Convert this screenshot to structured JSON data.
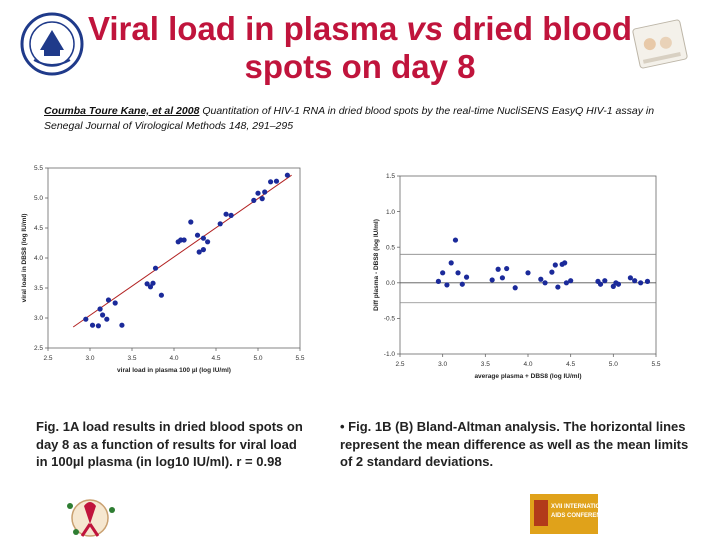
{
  "slide": {
    "title_part1": "Viral load in plasma ",
    "title_vs": "vs",
    "title_part2": " dried blood spots on day 8",
    "citation_authors": "Coumba Toure Kane, et al 2008",
    "citation_text": " Quantitation of HIV-1 RNA in dried blood spots by the real-time NucliSENS EasyQ HIV-1 assay in Senegal Journal of Virological Methods 148,  291–295",
    "caption_a": "Fig. 1A load results in dried blood spots on day 8 as a function of results for viral load in 100µl plasma (in log10 IU/ml). r = 0.98",
    "caption_b": "• Fig. 1B (B) Bland-Altman analysis. The horizontal lines represent the mean difference as well as the mean limits of 2 standard deviations.",
    "conference_text": "XVII INTERNATIONAL AIDS CONFERENCE",
    "colors": {
      "title": "#c0143c",
      "points": "#1b2a9a",
      "regression_line": "#b22222",
      "logo": "#1f3a8a",
      "conference_logo": "#e0a21a"
    }
  },
  "chart_data": [
    {
      "type": "scatter",
      "xlabel": "viral load in plasma 100 µl (log IU/ml)",
      "ylabel": "viral load in DBS8 (log IU/ml)",
      "xlim": [
        2.5,
        5.5
      ],
      "ylim": [
        2.5,
        5.5
      ],
      "xticks": [
        "2.5",
        "3.0",
        "3.5",
        "4.0",
        "4.5",
        "5.0",
        "5.5"
      ],
      "yticks": [
        "2.5",
        "3.0",
        "3.5",
        "4.0",
        "4.5",
        "5.0",
        "5.5"
      ],
      "grid": false,
      "regression_line": {
        "x": [
          2.8,
          5.4
        ],
        "y": [
          2.85,
          5.38
        ]
      },
      "points": [
        [
          2.95,
          2.98
        ],
        [
          3.03,
          2.88
        ],
        [
          3.1,
          2.87
        ],
        [
          3.12,
          3.15
        ],
        [
          3.15,
          3.05
        ],
        [
          3.2,
          2.98
        ],
        [
          3.22,
          3.3
        ],
        [
          3.3,
          3.25
        ],
        [
          3.38,
          2.88
        ],
        [
          3.68,
          3.57
        ],
        [
          3.72,
          3.52
        ],
        [
          3.75,
          3.58
        ],
        [
          3.78,
          3.83
        ],
        [
          3.85,
          3.38
        ],
        [
          4.05,
          4.27
        ],
        [
          4.08,
          4.3
        ],
        [
          4.12,
          4.3
        ],
        [
          4.2,
          4.6
        ],
        [
          4.28,
          4.38
        ],
        [
          4.3,
          4.1
        ],
        [
          4.35,
          4.14
        ],
        [
          4.35,
          4.33
        ],
        [
          4.4,
          4.27
        ],
        [
          4.55,
          4.57
        ],
        [
          4.62,
          4.73
        ],
        [
          4.68,
          4.71
        ],
        [
          4.95,
          4.96
        ],
        [
          5.0,
          5.08
        ],
        [
          5.05,
          4.99
        ],
        [
          5.08,
          5.1
        ],
        [
          5.15,
          5.27
        ],
        [
          5.22,
          5.28
        ],
        [
          5.35,
          5.38
        ]
      ]
    },
    {
      "type": "scatter",
      "xlabel": "average plasma + DBS8 (log IU/ml)",
      "ylabel": "Diff plasma - DBS8 (log IU/ml)",
      "xlim": [
        2.5,
        5.5
      ],
      "ylim": [
        -1.0,
        1.5
      ],
      "xticks": [
        "2.5",
        "3.0",
        "3.5",
        "4.0",
        "4.5",
        "5.0",
        "5.5"
      ],
      "yticks": [
        "1.5",
        "1.0",
        "0.5",
        "0.0",
        "-0.5",
        "-1.0"
      ],
      "grid": false,
      "mean_lines": [
        0.0,
        -0.28,
        0.4
      ],
      "points": [
        [
          2.95,
          0.02
        ],
        [
          3.0,
          0.14
        ],
        [
          3.05,
          -0.03
        ],
        [
          3.1,
          0.28
        ],
        [
          3.15,
          0.6
        ],
        [
          3.18,
          0.14
        ],
        [
          3.23,
          -0.02
        ],
        [
          3.28,
          0.08
        ],
        [
          3.58,
          0.04
        ],
        [
          3.65,
          0.19
        ],
        [
          3.7,
          0.07
        ],
        [
          3.75,
          0.2
        ],
        [
          3.85,
          -0.07
        ],
        [
          4.0,
          0.14
        ],
        [
          4.15,
          0.05
        ],
        [
          4.2,
          0.0
        ],
        [
          4.28,
          0.15
        ],
        [
          4.32,
          0.25
        ],
        [
          4.35,
          -0.06
        ],
        [
          4.4,
          0.26
        ],
        [
          4.43,
          0.28
        ],
        [
          4.45,
          0.0
        ],
        [
          4.5,
          0.03
        ],
        [
          4.82,
          0.02
        ],
        [
          4.9,
          0.03
        ],
        [
          5.0,
          -0.05
        ],
        [
          5.03,
          0.0
        ],
        [
          5.06,
          -0.02
        ],
        [
          5.2,
          0.07
        ],
        [
          5.25,
          0.03
        ],
        [
          5.32,
          0.0
        ],
        [
          5.4,
          0.02
        ],
        [
          4.85,
          -0.02
        ]
      ]
    }
  ]
}
